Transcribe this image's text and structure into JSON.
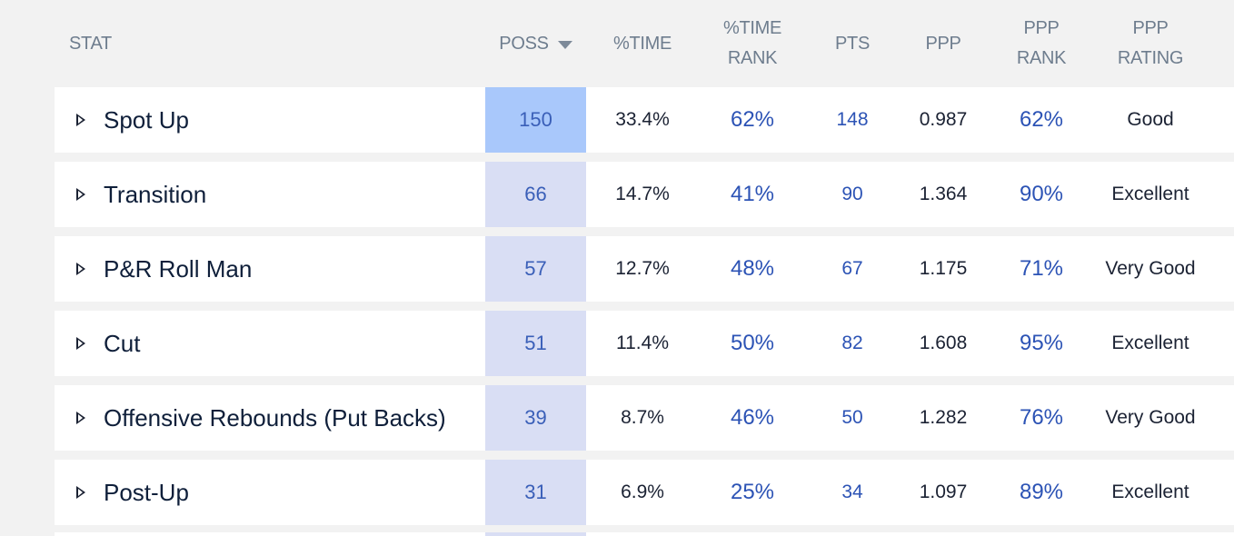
{
  "header": {
    "stat": "STAT",
    "poss": "POSS",
    "time": "%TIME",
    "time_rank": "%TIME\nRANK",
    "pts": "PTS",
    "ppp": "PPP",
    "ppp_rank": "PPP\nRANK",
    "ppp_rating": "PPP\nRATING"
  },
  "colors": {
    "poss_highlight": "#a9c8fb",
    "poss_default": "#d9def4",
    "rank_blue": "#2c53b5"
  },
  "rows": [
    {
      "name": "Spot Up",
      "poss": "150",
      "time": "33.4%",
      "time_rank": "62%",
      "pts": "148",
      "ppp": "0.987",
      "ppp_rank": "62%",
      "rating": "Good",
      "highlight": true
    },
    {
      "name": "Transition",
      "poss": "66",
      "time": "14.7%",
      "time_rank": "41%",
      "pts": "90",
      "ppp": "1.364",
      "ppp_rank": "90%",
      "rating": "Excellent",
      "highlight": false
    },
    {
      "name": "P&R Roll Man",
      "poss": "57",
      "time": "12.7%",
      "time_rank": "48%",
      "pts": "67",
      "ppp": "1.175",
      "ppp_rank": "71%",
      "rating": "Very Good",
      "highlight": false
    },
    {
      "name": "Cut",
      "poss": "51",
      "time": "11.4%",
      "time_rank": "50%",
      "pts": "82",
      "ppp": "1.608",
      "ppp_rank": "95%",
      "rating": "Excellent",
      "highlight": false
    },
    {
      "name": "Offensive Rebounds (Put Backs)",
      "poss": "39",
      "time": "8.7%",
      "time_rank": "46%",
      "pts": "50",
      "ppp": "1.282",
      "ppp_rank": "76%",
      "rating": "Very Good",
      "highlight": false
    },
    {
      "name": "Post-Up",
      "poss": "31",
      "time": "6.9%",
      "time_rank": "25%",
      "pts": "34",
      "ppp": "1.097",
      "ppp_rank": "89%",
      "rating": "Excellent",
      "highlight": false
    }
  ]
}
